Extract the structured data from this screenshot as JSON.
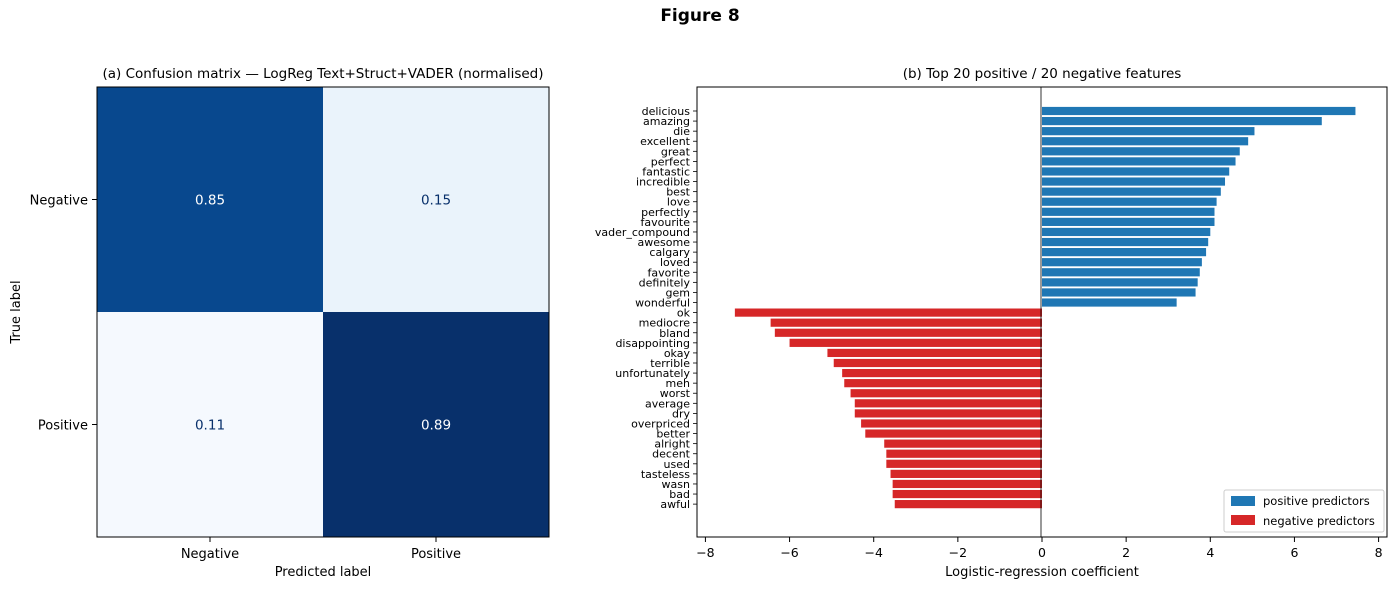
{
  "figure_title": "Figure 8",
  "chart_data": [
    {
      "type": "heatmap",
      "title": "(a)  Confusion matrix — LogReg  Text+Struct+VADER  (normalised)",
      "xlabel": "Predicted label",
      "ylabel": "True label",
      "x_categories": [
        "Negative",
        "Positive"
      ],
      "y_categories": [
        "Negative",
        "Positive"
      ],
      "values": [
        [
          "0.85",
          "0.15"
        ],
        [
          "0.11",
          "0.89"
        ]
      ],
      "colormap": "Blues",
      "cell_colors": [
        [
          "#08488e",
          "#eaf3fb"
        ],
        [
          "#f5f9fe",
          "#08306b"
        ]
      ],
      "text_colors": [
        [
          "#ffffff",
          "#08306b"
        ],
        [
          "#08306b",
          "#ffffff"
        ]
      ]
    },
    {
      "type": "bar",
      "orientation": "horizontal",
      "title": "(b)  Top 20 positive / 20 negative features",
      "xlabel": "Logistic-regression coefficient",
      "xlim": [
        -8.2,
        8.2
      ],
      "xticks": [
        "−8",
        "−6",
        "−4",
        "−2",
        "0",
        "2",
        "4",
        "6",
        "8"
      ],
      "xtick_values": [
        -8,
        -6,
        -4,
        -2,
        0,
        2,
        4,
        6,
        8
      ],
      "legend_position": "lower-right",
      "series": [
        {
          "name": "positive predictors",
          "color": "#1f77b4",
          "categories": [
            "delicious",
            "amazing",
            "die",
            "excellent",
            "great",
            "perfect",
            "fantastic",
            "incredible",
            "best",
            "love",
            "perfectly",
            "favourite",
            "vader_compound",
            "awesome",
            "calgary",
            "loved",
            "favorite",
            "definitely",
            "gem",
            "wonderful"
          ],
          "values": [
            7.45,
            6.65,
            5.05,
            4.9,
            4.7,
            4.6,
            4.45,
            4.35,
            4.25,
            4.15,
            4.1,
            4.1,
            4.0,
            3.95,
            3.9,
            3.8,
            3.75,
            3.7,
            3.65,
            3.2
          ]
        },
        {
          "name": "negative predictors",
          "color": "#d62728",
          "categories": [
            "ok",
            "mediocre",
            "bland",
            "disappointing",
            "okay",
            "terrible",
            "unfortunately",
            "meh",
            "worst",
            "average",
            "dry",
            "overpriced",
            "better",
            "alright",
            "decent",
            "used",
            "tasteless",
            "wasn",
            "bad",
            "awful"
          ],
          "values": [
            -7.3,
            -6.45,
            -6.35,
            -6.0,
            -5.1,
            -4.95,
            -4.75,
            -4.7,
            -4.55,
            -4.45,
            -4.45,
            -4.3,
            -4.2,
            -3.75,
            -3.7,
            -3.7,
            -3.6,
            -3.55,
            -3.55,
            -3.5
          ]
        }
      ]
    }
  ]
}
